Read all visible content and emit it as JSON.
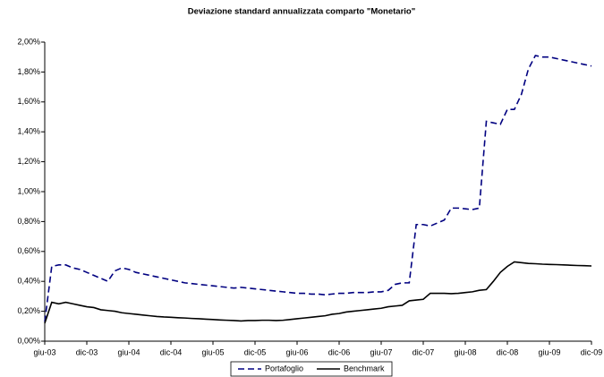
{
  "chart_data": {
    "type": "line",
    "title": "Deviazione standard annualizzata comparto \"Monetario\"",
    "categories": [
      "giu-03",
      null,
      null,
      null,
      null,
      null,
      "dic-03",
      null,
      null,
      null,
      null,
      null,
      "giu-04",
      null,
      null,
      null,
      null,
      null,
      "dic-04",
      null,
      null,
      null,
      null,
      null,
      "giu-05",
      null,
      null,
      null,
      null,
      null,
      "dic-05",
      null,
      null,
      null,
      null,
      null,
      "giu-06",
      null,
      null,
      null,
      null,
      null,
      "dic-06",
      null,
      null,
      null,
      null,
      null,
      "giu-07",
      null,
      null,
      null,
      null,
      null,
      "dic-07",
      null,
      null,
      null,
      null,
      null,
      "giu-08",
      null,
      null,
      null,
      null,
      null,
      "dic-08",
      null,
      null,
      null,
      null,
      null,
      "giu-09",
      null,
      null,
      null,
      null,
      null,
      "dic-09"
    ],
    "series": [
      {
        "name": "Portafoglio",
        "color": "#000080",
        "line_style": "dashed",
        "values": [
          0.13,
          0.5,
          0.51,
          0.51,
          0.49,
          0.48,
          0.46,
          0.44,
          0.42,
          0.4,
          0.47,
          0.49,
          0.48,
          0.46,
          0.45,
          0.44,
          0.43,
          0.42,
          0.41,
          0.4,
          0.39,
          0.385,
          0.38,
          0.375,
          0.37,
          0.365,
          0.36,
          0.355,
          0.36,
          0.355,
          0.35,
          0.345,
          0.34,
          0.335,
          0.33,
          0.325,
          0.32,
          0.32,
          0.315,
          0.315,
          0.31,
          0.315,
          0.32,
          0.32,
          0.325,
          0.325,
          0.325,
          0.33,
          0.33,
          0.34,
          0.38,
          0.39,
          0.39,
          0.78,
          0.78,
          0.77,
          0.79,
          0.81,
          0.89,
          0.89,
          0.885,
          0.88,
          0.89,
          1.47,
          1.46,
          1.45,
          1.55,
          1.55,
          1.65,
          1.82,
          1.91,
          1.9,
          1.9,
          1.89,
          1.88,
          1.87,
          1.86,
          1.85,
          1.84
        ]
      },
      {
        "name": "Benchmark",
        "color": "#000000",
        "line_style": "solid",
        "values": [
          0.12,
          0.26,
          0.25,
          0.26,
          0.25,
          0.24,
          0.23,
          0.225,
          0.21,
          0.205,
          0.2,
          0.19,
          0.185,
          0.18,
          0.175,
          0.17,
          0.165,
          0.162,
          0.16,
          0.157,
          0.155,
          0.152,
          0.15,
          0.147,
          0.145,
          0.142,
          0.14,
          0.138,
          0.135,
          0.138,
          0.138,
          0.14,
          0.14,
          0.138,
          0.14,
          0.145,
          0.15,
          0.155,
          0.16,
          0.165,
          0.17,
          0.18,
          0.185,
          0.195,
          0.2,
          0.205,
          0.21,
          0.215,
          0.22,
          0.23,
          0.235,
          0.24,
          0.27,
          0.275,
          0.28,
          0.32,
          0.32,
          0.32,
          0.318,
          0.32,
          0.325,
          0.33,
          0.34,
          0.345,
          0.4,
          0.46,
          0.5,
          0.53,
          0.525,
          0.52,
          0.518,
          0.515,
          0.513,
          0.512,
          0.51,
          0.508,
          0.506,
          0.505,
          0.503
        ]
      }
    ],
    "ylim": [
      0,
      2
    ],
    "yticks": [
      {
        "value": 0,
        "label": "0,00%"
      },
      {
        "value": 0.2,
        "label": "0,20%"
      },
      {
        "value": 0.4,
        "label": "0,40%"
      },
      {
        "value": 0.6,
        "label": "0,60%"
      },
      {
        "value": 0.8,
        "label": "0,80%"
      },
      {
        "value": 1,
        "label": "1,00%"
      },
      {
        "value": 1.2,
        "label": "1,20%"
      },
      {
        "value": 1.4,
        "label": "1,40%"
      },
      {
        "value": 1.6,
        "label": "1,60%"
      },
      {
        "value": 1.8,
        "label": "1,80%"
      },
      {
        "value": 2,
        "label": "2,00%"
      }
    ],
    "grid": false,
    "legend": "bottom"
  }
}
